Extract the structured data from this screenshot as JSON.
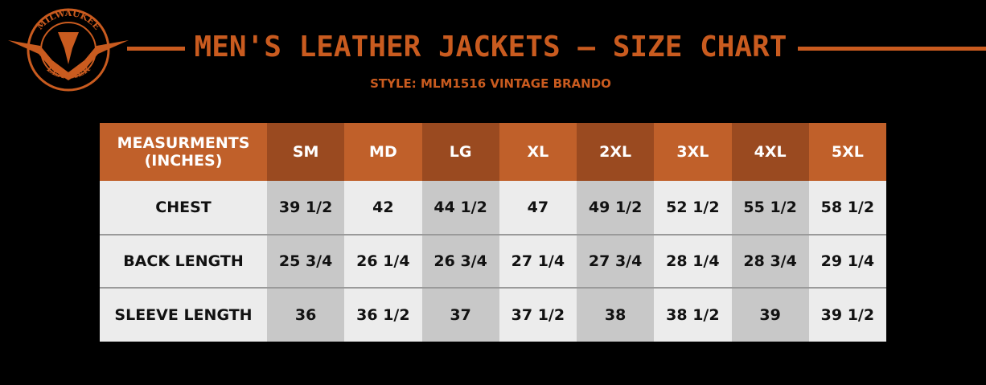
{
  "logo": {
    "top_text": "MILWAUKEE",
    "bottom_text": "LEATHER"
  },
  "header": {
    "title": "MEN'S LEATHER JACKETS – SIZE CHART",
    "style": "STYLE: MLM1516 VINTAGE BRANDO"
  },
  "table": {
    "columns": [
      "MEASURMENTS (INCHES)",
      "SM",
      "MD",
      "LG",
      "XL",
      "2XL",
      "3XL",
      "4XL",
      "5XL"
    ],
    "rows": [
      [
        "CHEST",
        "39 1/2",
        "42",
        "44 1/2",
        "47",
        "49 1/2",
        "52 1/2",
        "55 1/2",
        "58 1/2"
      ],
      [
        "BACK LENGTH",
        "25 3/4",
        "26 1/4",
        "26 3/4",
        "27 1/4",
        "27 3/4",
        "28 1/4",
        "28 3/4",
        "29 1/4"
      ],
      [
        "SLEEVE LENGTH",
        "36",
        "36 1/2",
        "37",
        "37 1/2",
        "38",
        "38 1/2",
        "39",
        "39 1/2"
      ]
    ]
  }
}
